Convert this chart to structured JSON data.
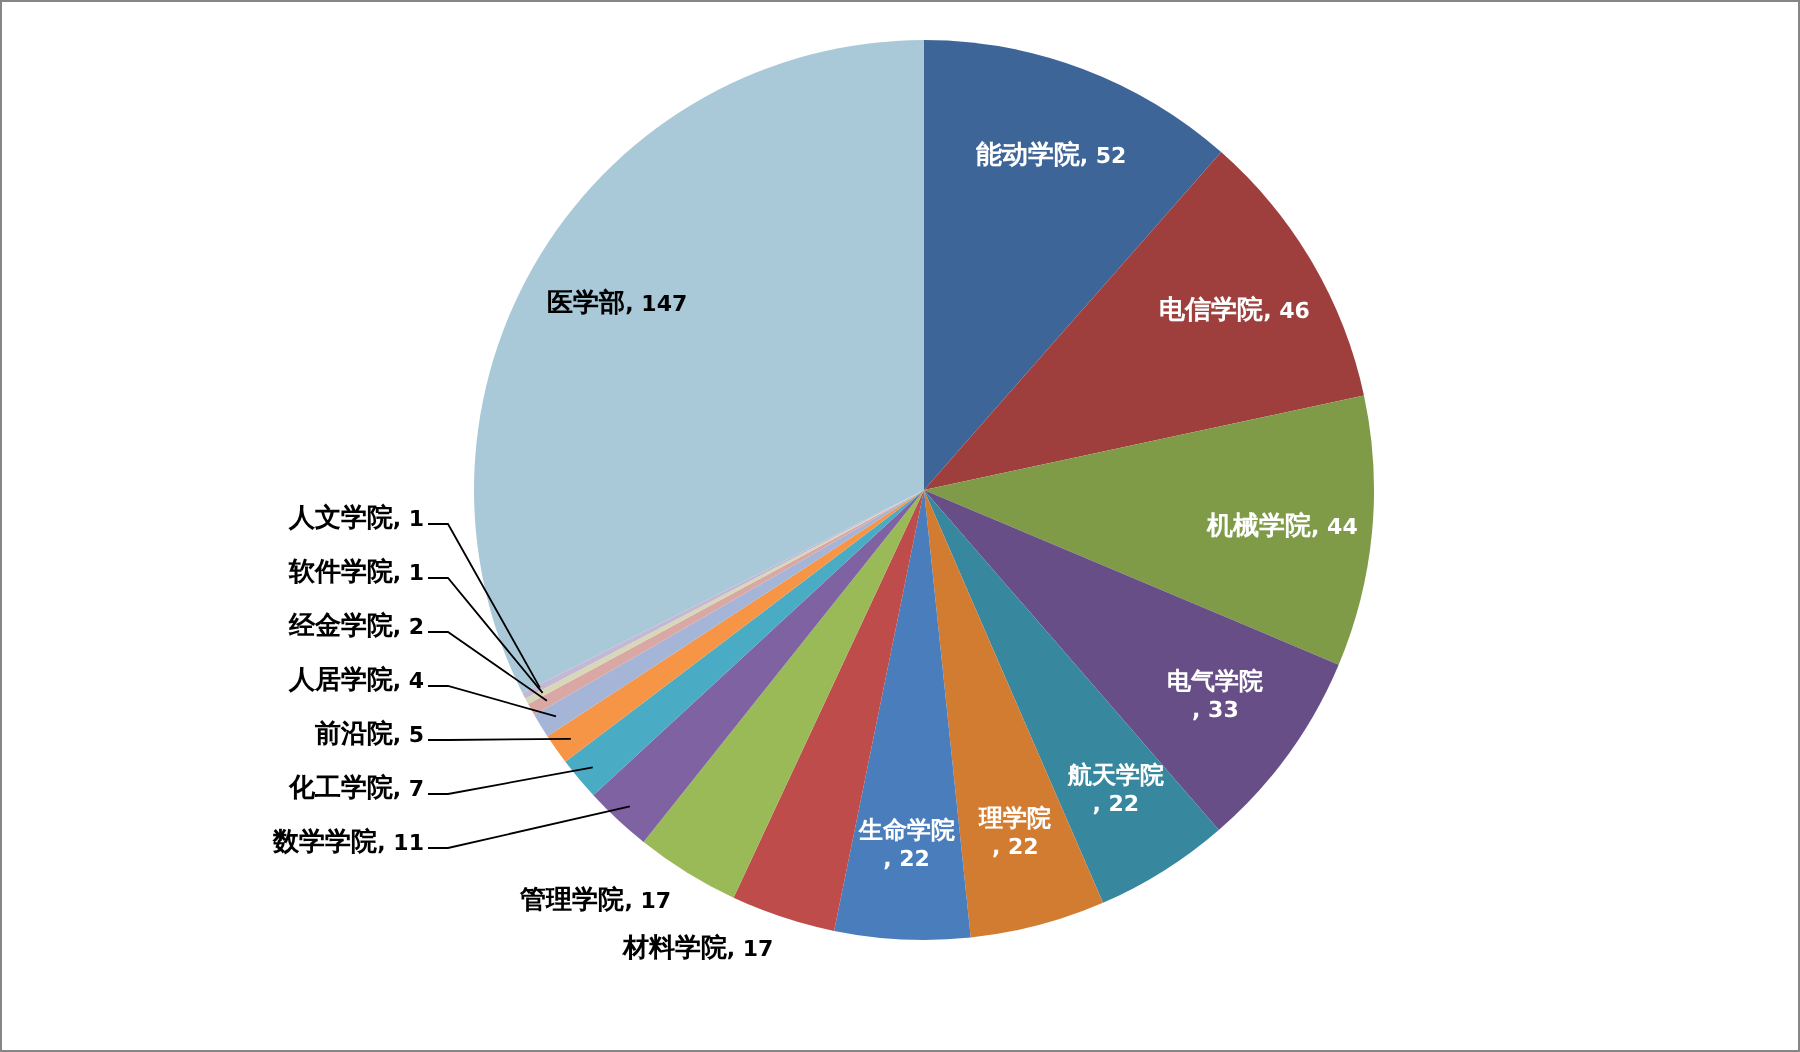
{
  "chart_data": {
    "type": "pie",
    "categories": [
      "能动学院",
      "电信学院",
      "机械学院",
      "电气学院",
      "航天学院",
      "理学院",
      "生命学院",
      "材料学院",
      "管理学院",
      "数学学院",
      "化工学院",
      "前沿院",
      "人居学院",
      "经金学院",
      "软件学院",
      "人文学院",
      "医学部"
    ],
    "values": [
      52,
      46,
      44,
      33,
      22,
      22,
      22,
      17,
      17,
      11,
      7,
      5,
      4,
      2,
      1,
      1,
      147
    ],
    "value_labels": [
      ", 52",
      ", 46",
      ", 44",
      ", 33",
      ", 22",
      ", 22",
      ", 22",
      ", 17",
      ", 17",
      ", 11",
      ", 7",
      ", 5",
      ", 4",
      ", 2",
      ", 1",
      ", 1",
      ", 147"
    ],
    "colors": [
      "#3e6598",
      "#9e3f3d",
      "#7f9b48",
      "#674e86",
      "#37879f",
      "#d27c31",
      "#4a7dbb",
      "#bd4c4a",
      "#99ba56",
      "#7e62a1",
      "#4aabc5",
      "#f59545",
      "#a5b5d8",
      "#d9a7a4",
      "#d6d8b8",
      "#c4b8d4",
      "#a9c9d9"
    ]
  }
}
